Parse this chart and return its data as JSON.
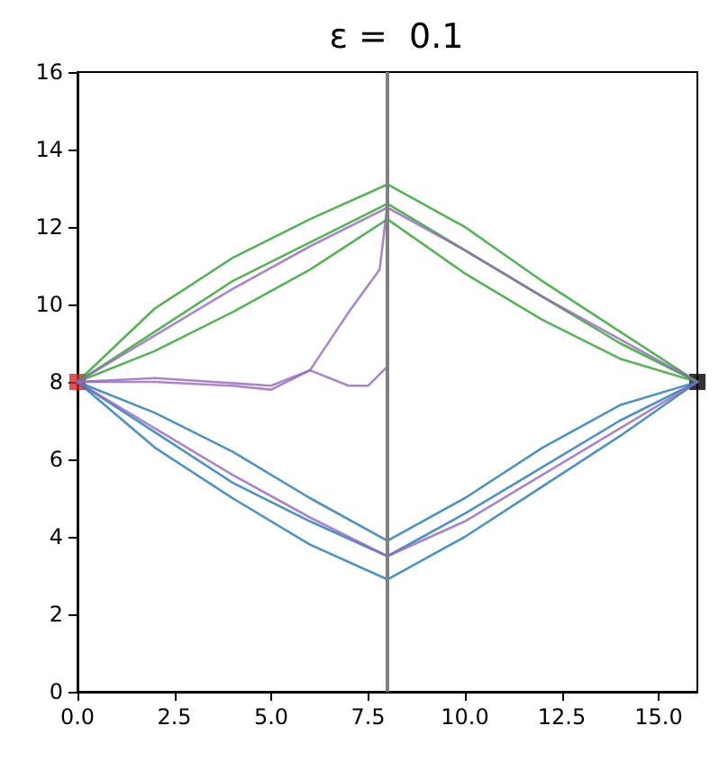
{
  "chart_data": {
    "type": "line",
    "title": "ε =  0.1",
    "x": [
      0,
      2,
      4,
      6,
      8,
      10,
      12,
      14,
      16
    ],
    "series": [
      {
        "color": "#2ca02c",
        "values": [
          8,
          9.9,
          11.2,
          12.2,
          13.1,
          12.0,
          10.6,
          9.3,
          8
        ]
      },
      {
        "color": "#2ca02c",
        "values": [
          8,
          9.3,
          10.6,
          11.6,
          12.6,
          11.4,
          10.2,
          9.0,
          8
        ]
      },
      {
        "color": "#2ca02c",
        "values": [
          8,
          8.8,
          9.8,
          10.9,
          12.2,
          10.8,
          9.6,
          8.6,
          8
        ]
      },
      {
        "color": "#1f77b4",
        "values": [
          8,
          7.2,
          6.2,
          5.0,
          3.9,
          5.0,
          6.3,
          7.4,
          8
        ]
      },
      {
        "color": "#1f77b4",
        "values": [
          8,
          6.7,
          5.4,
          4.4,
          3.5,
          4.6,
          5.8,
          7.0,
          8
        ]
      },
      {
        "color": "#1f77b4",
        "values": [
          8,
          6.3,
          5.0,
          3.8,
          2.9,
          4.0,
          5.3,
          6.6,
          8
        ]
      },
      {
        "color": "#9467bd",
        "values": [
          8,
          9.2,
          10.4,
          11.5,
          12.5,
          11.4,
          10.2,
          9.1,
          8
        ]
      },
      {
        "color": "#9467bd",
        "values": [
          8,
          6.8,
          5.6,
          4.5,
          3.5,
          4.4,
          5.6,
          6.8,
          8
        ]
      },
      {
        "color": "#9467bd",
        "x": [
          0,
          2,
          4,
          5,
          6,
          7,
          7.5,
          8
        ],
        "values": [
          8,
          8,
          7.9,
          7.8,
          8.3,
          7.9,
          7.9,
          8.4
        ]
      },
      {
        "color": "#9467bd",
        "x": [
          0,
          2,
          5,
          6,
          7,
          7.8,
          8
        ],
        "values": [
          8,
          8.1,
          7.9,
          8.3,
          9.8,
          10.9,
          12.6
        ]
      },
      {
        "type": "scatter",
        "marker": "square",
        "color": "#d62728",
        "x": [
          0
        ],
        "values": [
          8
        ]
      },
      {
        "type": "scatter",
        "marker": "square",
        "color": "#000000",
        "x": [
          16
        ],
        "values": [
          8
        ]
      }
    ],
    "xlim": [
      0,
      16
    ],
    "xticks": [
      {
        "value": 0,
        "label": "0.0"
      },
      {
        "value": 2.5,
        "label": "2.5"
      },
      {
        "value": 5,
        "label": "5.0"
      },
      {
        "value": 7.5,
        "label": "7.5"
      },
      {
        "value": 10,
        "label": "10.0"
      },
      {
        "value": 12.5,
        "label": "12.5"
      },
      {
        "value": 15,
        "label": "15.0"
      }
    ],
    "ylim": [
      0,
      16
    ],
    "yticks": [
      0,
      2,
      4,
      6,
      8,
      10,
      12,
      14,
      16
    ],
    "ref_lines": [
      {
        "axis": "x",
        "value": 8,
        "color": "#808080"
      }
    ],
    "grid": false
  }
}
